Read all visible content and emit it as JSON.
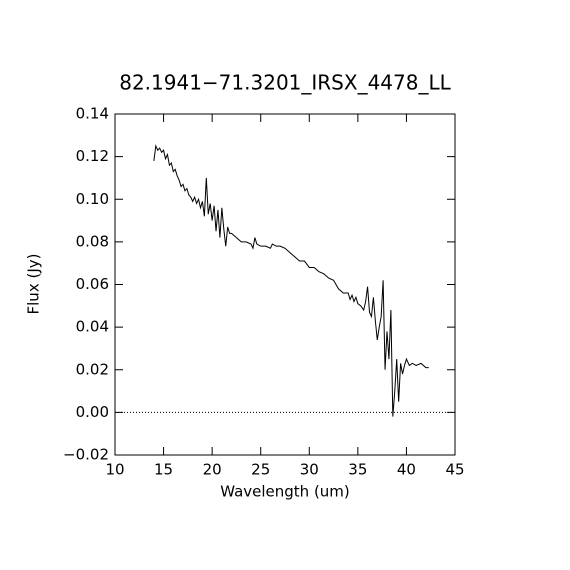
{
  "chart_data": {
    "type": "line",
    "title": "82.1941−71.3201_IRSX_4478_LL",
    "x_label": "Wavelength (um)",
    "y_label": "Flux (Jy)",
    "color": "#000000",
    "zero_line": true,
    "xlim": [
      10,
      45
    ],
    "xticks": [
      10,
      15,
      20,
      25,
      30,
      35,
      40,
      45
    ],
    "ylim": [
      -0.02,
      0.14
    ],
    "yticks": [
      {
        "value": -0.02,
        "label": "−0.02"
      },
      {
        "value": 0,
        "label": "0.00"
      },
      0.02,
      0.04,
      0.06,
      0.08,
      {
        "value": 0.1,
        "label": "0.10"
      },
      0.12,
      0.14
    ],
    "x": [
      14.0,
      14.2,
      14.4,
      14.6,
      14.8,
      15.0,
      15.2,
      15.4,
      15.6,
      15.8,
      16.0,
      16.2,
      16.4,
      16.6,
      16.8,
      17.0,
      17.2,
      17.4,
      17.6,
      17.8,
      18.0,
      18.2,
      18.4,
      18.6,
      18.8,
      19.0,
      19.2,
      19.4,
      19.6,
      19.8,
      20.0,
      20.2,
      20.4,
      20.6,
      20.8,
      21.0,
      21.2,
      21.4,
      21.6,
      21.8,
      22.0,
      22.5,
      23.0,
      23.5,
      24.0,
      24.2,
      24.4,
      24.6,
      25.0,
      25.5,
      26.0,
      26.2,
      26.6,
      27.0,
      27.5,
      28.0,
      28.5,
      29.0,
      29.5,
      30.0,
      30.5,
      31.0,
      31.5,
      32.0,
      32.5,
      33.0,
      33.5,
      34.0,
      34.2,
      34.4,
      34.6,
      34.8,
      35.0,
      35.3,
      35.6,
      35.8,
      36.0,
      36.2,
      36.4,
      36.6,
      36.8,
      37.0,
      37.2,
      37.4,
      37.6,
      37.8,
      38.0,
      38.2,
      38.4,
      38.6,
      38.8,
      39.0,
      39.2,
      39.4,
      39.6,
      39.8,
      40.0,
      40.3,
      40.6,
      41.0,
      41.5,
      42.0,
      42.3
    ],
    "values": [
      0.118,
      0.125,
      0.123,
      0.124,
      0.122,
      0.123,
      0.119,
      0.121,
      0.116,
      0.117,
      0.113,
      0.114,
      0.111,
      0.109,
      0.106,
      0.107,
      0.104,
      0.105,
      0.102,
      0.101,
      0.099,
      0.101,
      0.098,
      0.1,
      0.096,
      0.099,
      0.092,
      0.11,
      0.093,
      0.098,
      0.09,
      0.097,
      0.085,
      0.095,
      0.082,
      0.096,
      0.086,
      0.078,
      0.087,
      0.084,
      0.084,
      0.082,
      0.08,
      0.08,
      0.079,
      0.077,
      0.082,
      0.079,
      0.078,
      0.078,
      0.077,
      0.079,
      0.078,
      0.078,
      0.077,
      0.075,
      0.073,
      0.071,
      0.071,
      0.068,
      0.068,
      0.066,
      0.065,
      0.063,
      0.062,
      0.058,
      0.056,
      0.056,
      0.053,
      0.055,
      0.052,
      0.054,
      0.051,
      0.05,
      0.048,
      0.052,
      0.059,
      0.047,
      0.045,
      0.054,
      0.043,
      0.034,
      0.04,
      0.045,
      0.062,
      0.02,
      0.038,
      0.025,
      0.048,
      -0.002,
      0.01,
      0.025,
      0.005,
      0.023,
      0.018,
      0.022,
      0.025,
      0.022,
      0.023,
      0.022,
      0.023,
      0.021,
      0.021
    ]
  }
}
